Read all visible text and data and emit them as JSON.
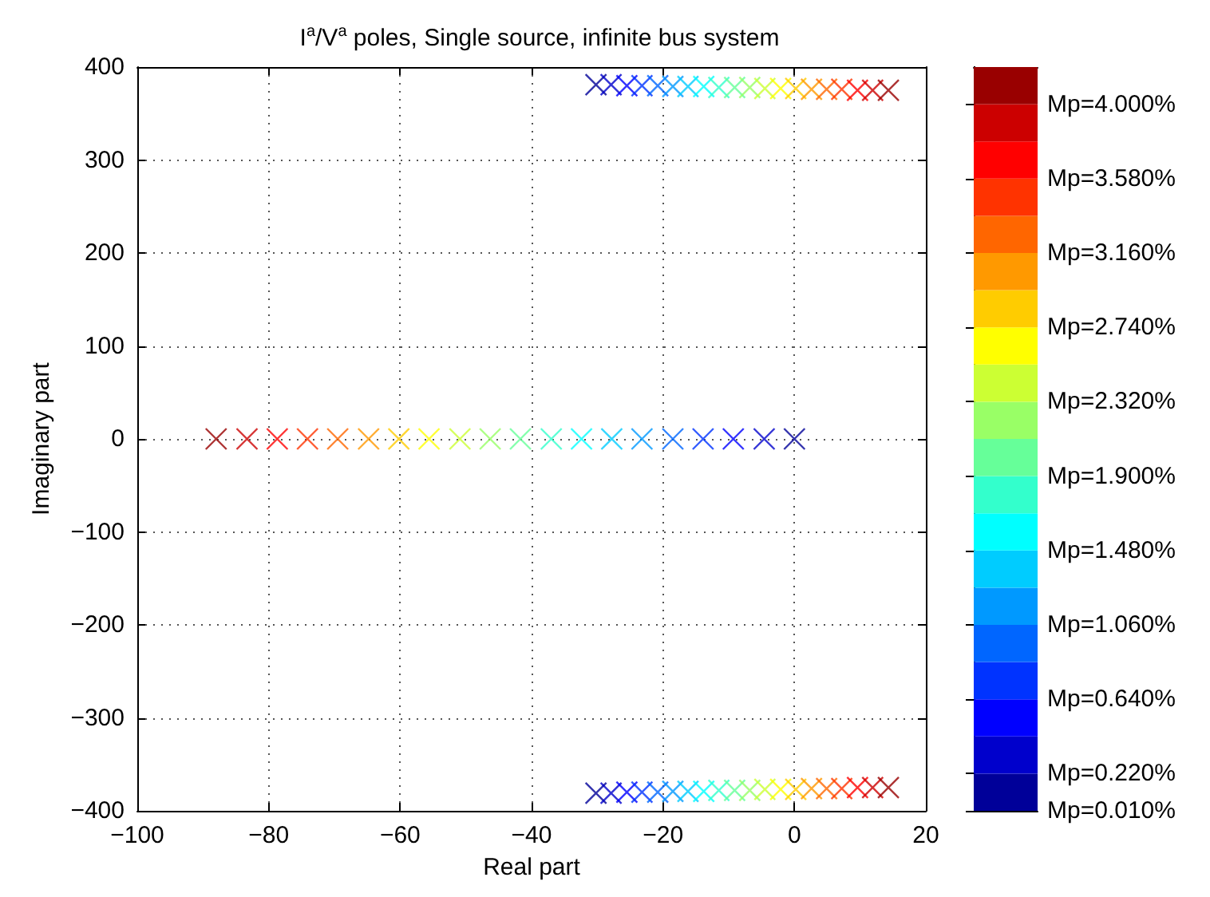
{
  "chart_data": {
    "type": "scatter",
    "title": "I$^{a}$/V$^{a}$ poles, Single source, infinite bus system",
    "xlabel": "Real part",
    "ylabel": "Imaginary part",
    "x": [
      0,
      -4.6,
      -9.3,
      -13.9,
      -18.5,
      -23.2,
      -27.8,
      -32.4,
      -37.0,
      -41.7,
      -46.3,
      -50.9,
      -55.6,
      -60.2,
      -64.8,
      -69.5,
      -74.1,
      -78.7,
      -83.3,
      -88.0,
      -30.2,
      -27.9,
      -25.5,
      -23.2,
      -20.8,
      -18.5,
      -16.2,
      -13.8,
      -11.5,
      -9.1,
      -6.8,
      -4.5,
      -2.1,
      0.2,
      2.6,
      4.9,
      7.2,
      9.6,
      11.9,
      14.3,
      -30.2,
      -27.9,
      -25.5,
      -23.2,
      -20.8,
      -18.5,
      -16.2,
      -13.8,
      -11.5,
      -9.1,
      -6.8,
      -4.5,
      -2.1,
      0.2,
      2.6,
      4.9,
      7.2,
      9.6,
      11.9,
      14.3
    ],
    "values": [
      0,
      0,
      0,
      0,
      0,
      0,
      0,
      0,
      0,
      0,
      0,
      0,
      0,
      0,
      0,
      0,
      0,
      0,
      0,
      0,
      381,
      381,
      380,
      380,
      380,
      379,
      379,
      379,
      378,
      378,
      378,
      377,
      377,
      377,
      376,
      376,
      376,
      375,
      375,
      375,
      -381,
      -381,
      -380,
      -380,
      -380,
      -379,
      -379,
      -379,
      -378,
      -378,
      -378,
      -377,
      -377,
      -377,
      -376,
      -376,
      -376,
      -375,
      -375,
      -375
    ],
    "cvalues": [
      0.01,
      0.22,
      0.43,
      0.64,
      0.85,
      1.06,
      1.27,
      1.48,
      1.69,
      1.9,
      2.11,
      2.32,
      2.53,
      2.74,
      2.95,
      3.16,
      3.37,
      3.58,
      3.79,
      4.0,
      0.01,
      0.22,
      0.43,
      0.64,
      0.85,
      1.06,
      1.27,
      1.48,
      1.69,
      1.9,
      2.11,
      2.32,
      2.53,
      2.74,
      2.95,
      3.16,
      3.37,
      3.58,
      3.79,
      4.0,
      0.01,
      0.22,
      0.43,
      0.64,
      0.85,
      1.06,
      1.27,
      1.48,
      1.69,
      1.9,
      2.11,
      2.32,
      2.53,
      2.74,
      2.95,
      3.16,
      3.37,
      3.58,
      3.79,
      4.0
    ],
    "clim": [
      0.01,
      4.21
    ],
    "cticks": [
      {
        "value": 0.01,
        "label": "Mp=0.010%"
      },
      {
        "value": 0.22,
        "label": "Mp=0.220%"
      },
      {
        "value": 0.64,
        "label": "Mp=0.640%"
      },
      {
        "value": 1.06,
        "label": "Mp=1.060%"
      },
      {
        "value": 1.48,
        "label": "Mp=1.480%"
      },
      {
        "value": 1.9,
        "label": "Mp=1.900%"
      },
      {
        "value": 2.32,
        "label": "Mp=2.320%"
      },
      {
        "value": 2.74,
        "label": "Mp=2.740%"
      },
      {
        "value": 3.16,
        "label": "Mp=3.160%"
      },
      {
        "value": 3.58,
        "label": "Mp=3.580%"
      },
      {
        "value": 4.0,
        "label": "Mp=4.000%"
      }
    ],
    "xlim": [
      -100,
      20
    ],
    "xticks": [
      -100,
      -80,
      -60,
      -40,
      -20,
      0,
      20
    ],
    "ylim": [
      -400,
      400
    ],
    "yticks": [
      -400,
      -300,
      -200,
      -100,
      0,
      100,
      200,
      300,
      400
    ],
    "grid": true,
    "marker": "cross"
  }
}
